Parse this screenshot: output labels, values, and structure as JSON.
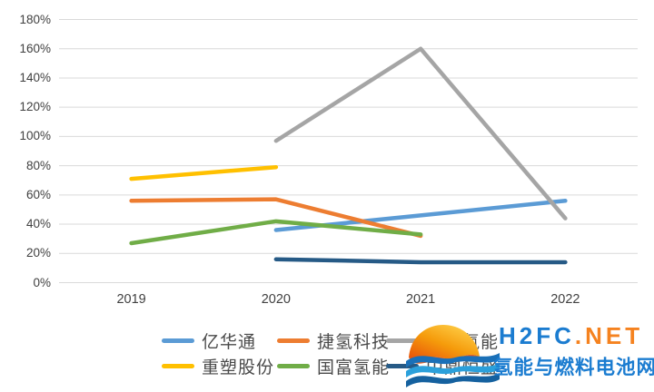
{
  "chart_data": {
    "type": "line",
    "title": "",
    "xlabel": "",
    "ylabel": "",
    "categories": [
      "2019",
      "2020",
      "2021",
      "2022"
    ],
    "series": [
      {
        "name": "亿华通",
        "color": "#5B9BD5",
        "values": [
          null,
          36,
          46,
          56
        ]
      },
      {
        "name": "捷氢科技",
        "color": "#ED7D31",
        "values": [
          56,
          57,
          32,
          null
        ]
      },
      {
        "name": "国鸿氢能",
        "color": "#A5A5A5",
        "values": [
          null,
          97,
          160,
          44
        ]
      },
      {
        "name": "重塑股份",
        "color": "#FFC000",
        "values": [
          71,
          79,
          null,
          null
        ]
      },
      {
        "name": "国富氢能",
        "color": "#70AD47",
        "values": [
          27,
          42,
          33,
          null
        ]
      },
      {
        "name": "中鼎恒盛",
        "color": "#265A86",
        "values": [
          null,
          16,
          14,
          14
        ]
      }
    ],
    "ylim": [
      0,
      180
    ],
    "ytick_step": 20,
    "ytick_suffix": "%",
    "grid": "horizontal",
    "grid_color": "#D9D9D9",
    "tick_color": "#404040",
    "legend_position": "bottom"
  },
  "watermark": {
    "line1_blue": "H2FC",
    "line1_orange": ".NET",
    "line2": "氢能与燃料电池网",
    "colors": {
      "blue": "#1B7CD0",
      "orange": "#F5821F"
    }
  }
}
